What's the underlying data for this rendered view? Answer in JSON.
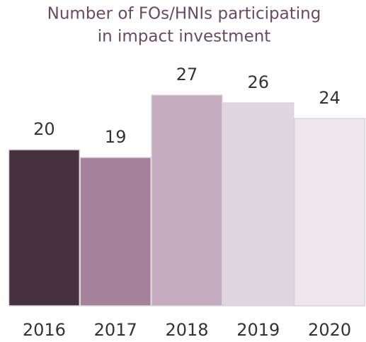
{
  "chart_data": {
    "type": "bar",
    "title": [
      "Number of FOs/HNIs participating",
      "in impact investment"
    ],
    "categories": [
      "2016",
      "2017",
      "2018",
      "2019",
      "2020"
    ],
    "values": [
      20,
      19,
      27,
      26,
      24
    ],
    "colors": [
      "#45323e",
      "#a4829b",
      "#c4abc0",
      "#e0d6df",
      "#ede6ec"
    ]
  }
}
